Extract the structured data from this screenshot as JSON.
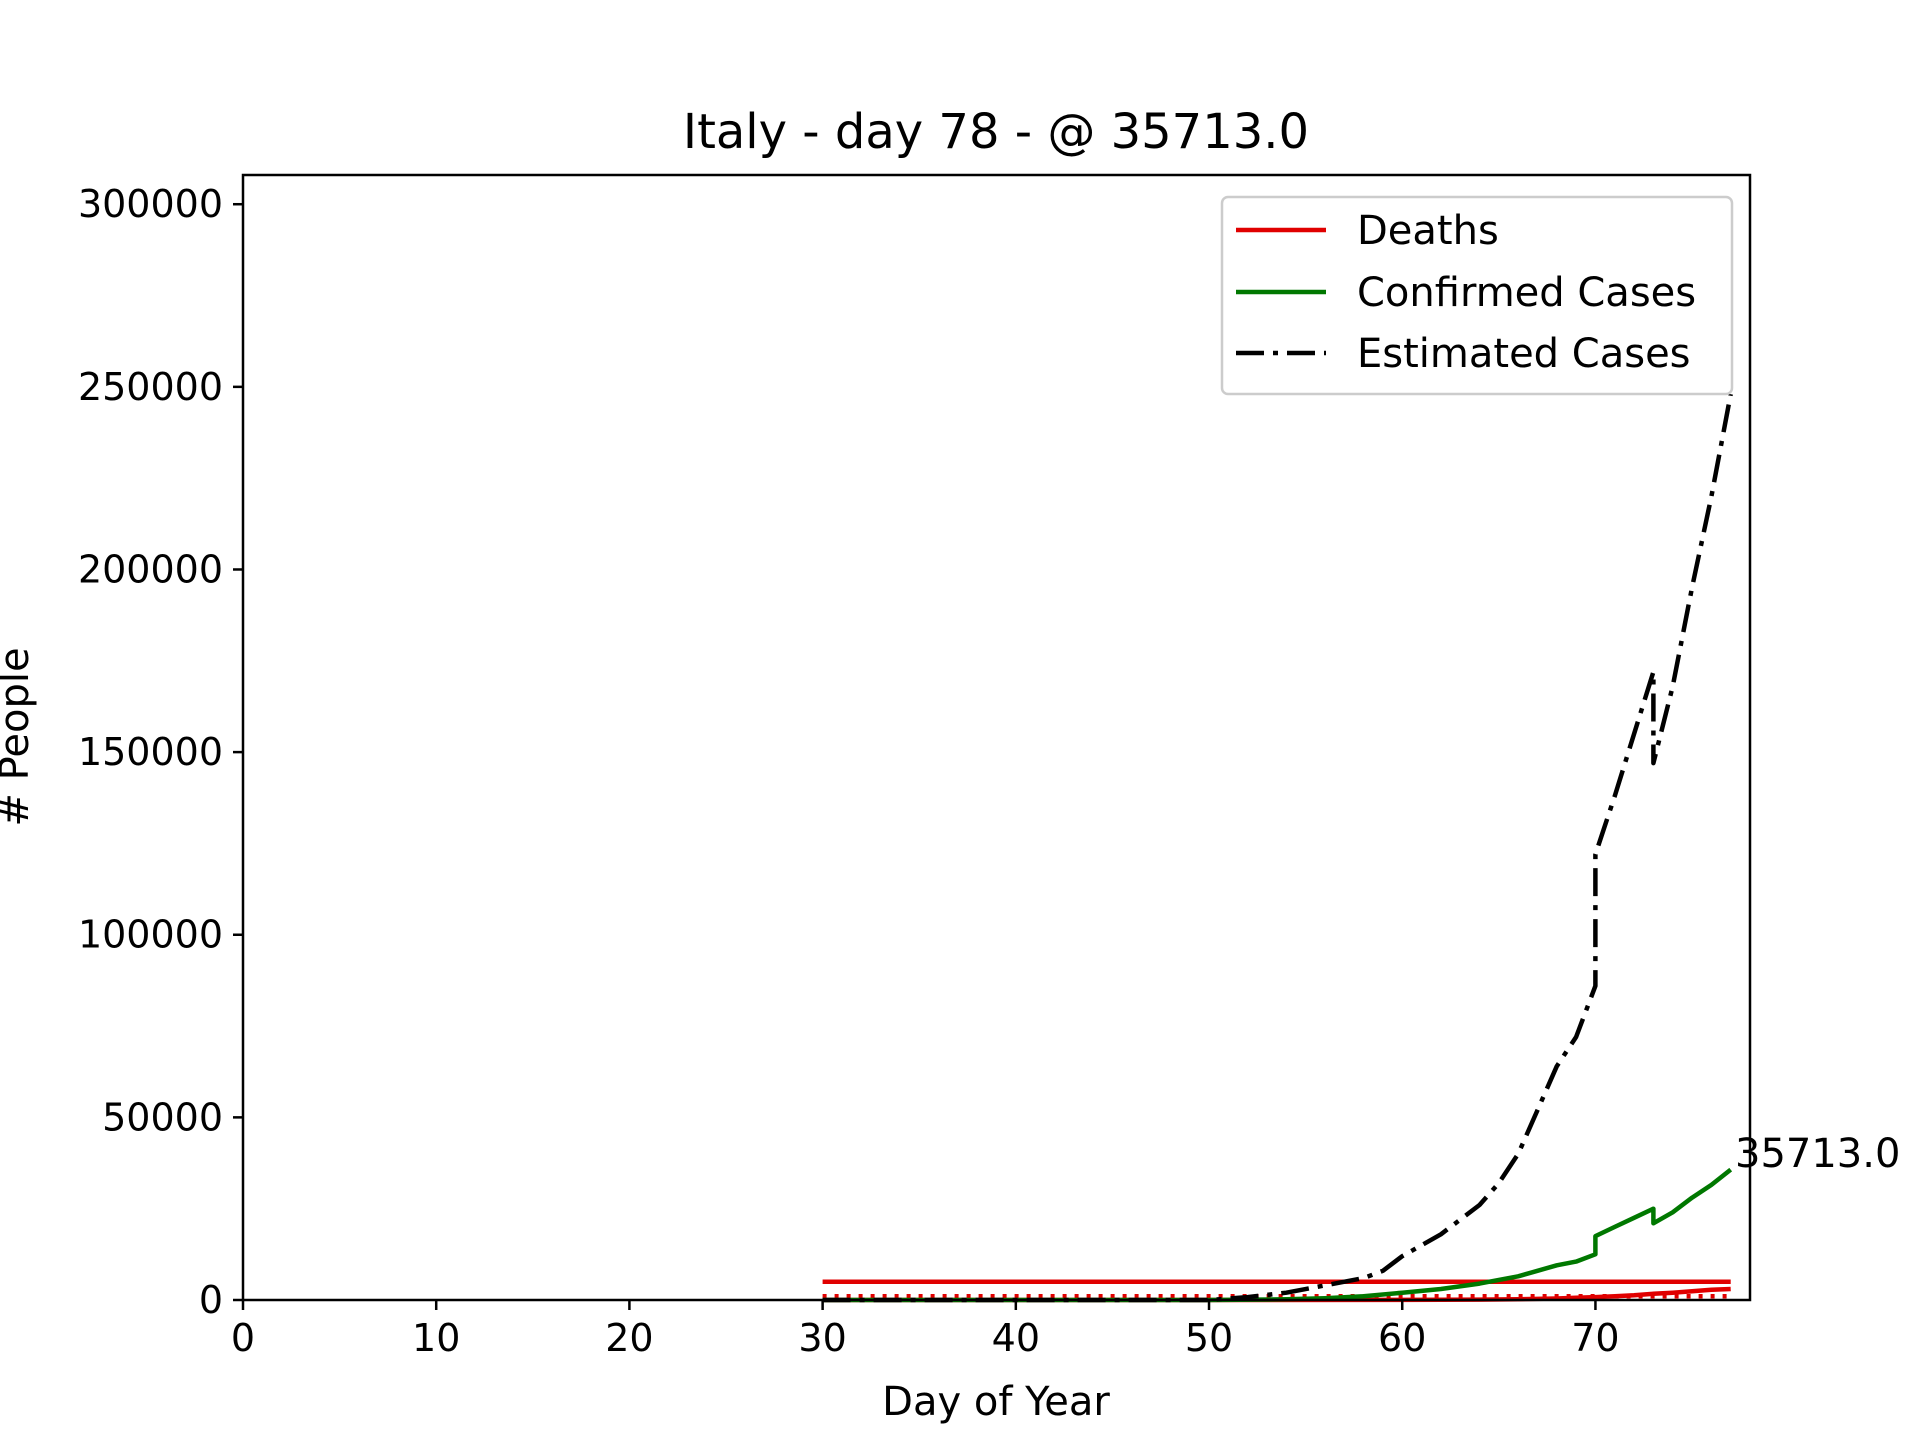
{
  "chart_data": {
    "type": "line",
    "title": "Italy - day 78 - @ 35713.0",
    "xlabel": "Day of Year",
    "ylabel": "# People",
    "xlim": [
      0,
      78
    ],
    "ylim": [
      0,
      308000
    ],
    "xticks": [
      0,
      10,
      20,
      30,
      40,
      50,
      60,
      70
    ],
    "yticks": [
      0,
      50000,
      100000,
      150000,
      200000,
      250000,
      300000
    ],
    "grid": false,
    "legend": "top-right",
    "annotation": {
      "text": "35713.0",
      "x": 77,
      "y": 35713
    },
    "colors": {
      "deaths": "#e00000",
      "confirmed": "#007800",
      "estimated": "#000000"
    },
    "series": [
      {
        "name": "Deaths",
        "style": "solid",
        "color": "#e00000",
        "x": [
          30,
          40,
          50,
          60,
          62,
          64,
          66,
          68,
          69,
          70,
          71,
          72,
          73,
          74,
          75,
          76,
          77
        ],
        "y": [
          0,
          0,
          0,
          30,
          50,
          100,
          200,
          400,
          600,
          800,
          1000,
          1300,
          1700,
          2000,
          2400,
          2800,
          3000
        ]
      },
      {
        "name": "Confirmed Cases",
        "style": "solid",
        "color": "#007800",
        "x": [
          30,
          40,
          50,
          54,
          56,
          58,
          60,
          62,
          64,
          65,
          66,
          67,
          68,
          69,
          70,
          70,
          71,
          72,
          73,
          73,
          74,
          75,
          76,
          77
        ],
        "y": [
          0,
          0,
          0,
          200,
          500,
          1000,
          2000,
          3000,
          4500,
          5500,
          6500,
          8000,
          9500,
          10500,
          12500,
          17500,
          20000,
          22500,
          25000,
          21000,
          24000,
          28000,
          31500,
          35713
        ]
      },
      {
        "name": "Estimated Cases",
        "style": "dashdot",
        "color": "#000000",
        "x": [
          30,
          40,
          50,
          52,
          54,
          56,
          58,
          59,
          60,
          62,
          64,
          65,
          66,
          67,
          68,
          69,
          70,
          70,
          71,
          72,
          73,
          73,
          74,
          75,
          76,
          77
        ],
        "y": [
          0,
          0,
          0,
          800,
          2000,
          4000,
          6000,
          8000,
          12000,
          18000,
          26000,
          32000,
          40000,
          52000,
          64000,
          72000,
          86000,
          122000,
          138000,
          155000,
          172000,
          147000,
          168000,
          195000,
          220000,
          248000
        ]
      }
    ],
    "reference_lines": [
      {
        "style": "solid",
        "color": "#e00000",
        "x": [
          30,
          77
        ],
        "y": [
          5000,
          5000
        ]
      },
      {
        "style": "dotted",
        "color": "#e00000",
        "x": [
          30,
          77
        ],
        "y": [
          1000,
          1000
        ]
      }
    ]
  }
}
